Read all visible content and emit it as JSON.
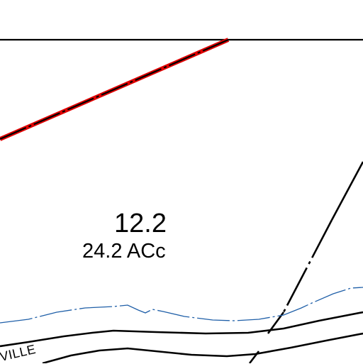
{
  "parcel": {
    "number": "12.2",
    "area": "24.2 ACc"
  },
  "road": {
    "label": "VILLE"
  },
  "colors": {
    "background": "#ffffff",
    "parcel_line": "#000000",
    "boundary_red": "#e00000",
    "stream": "#1f5fa8",
    "road_line": "#000000"
  }
}
